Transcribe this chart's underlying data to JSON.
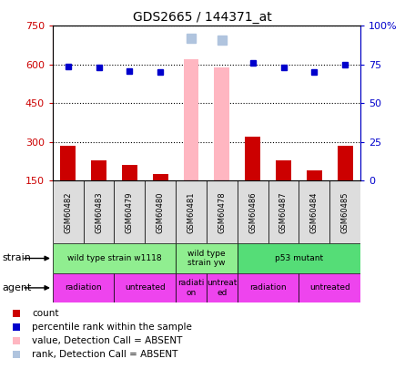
{
  "title": "GDS2665 / 144371_at",
  "samples": [
    "GSM60482",
    "GSM60483",
    "GSM60479",
    "GSM60480",
    "GSM60481",
    "GSM60478",
    "GSM60486",
    "GSM60487",
    "GSM60484",
    "GSM60485"
  ],
  "count_values": [
    285,
    230,
    210,
    175,
    null,
    null,
    320,
    230,
    190,
    285
  ],
  "count_absent": [
    null,
    null,
    null,
    null,
    620,
    590,
    null,
    null,
    null,
    null
  ],
  "percentile_values": [
    74,
    73,
    71,
    70,
    null,
    null,
    76,
    73,
    70,
    75
  ],
  "rank_absent": [
    null,
    null,
    null,
    null,
    92,
    91,
    null,
    null,
    null,
    null
  ],
  "ylim_left": [
    150,
    750
  ],
  "ylim_right": [
    0,
    100
  ],
  "yticks_left": [
    150,
    300,
    450,
    600,
    750
  ],
  "yticks_right": [
    0,
    25,
    50,
    75,
    100
  ],
  "strain_groups": [
    {
      "label": "wild type strain w1118",
      "start": 0,
      "end": 4,
      "color": "#90EE90"
    },
    {
      "label": "wild type\nstrain yw",
      "start": 4,
      "end": 6,
      "color": "#90EE90"
    },
    {
      "label": "p53 mutant",
      "start": 6,
      "end": 10,
      "color": "#55DD77"
    }
  ],
  "agent_groups": [
    {
      "label": "radiation",
      "start": 0,
      "end": 2,
      "color": "#EE44EE"
    },
    {
      "label": "untreated",
      "start": 2,
      "end": 4,
      "color": "#EE44EE"
    },
    {
      "label": "radiati-\non",
      "start": 4,
      "end": 5,
      "color": "#EE44EE"
    },
    {
      "label": "untreat-\ned",
      "start": 5,
      "end": 6,
      "color": "#EE44EE"
    },
    {
      "label": "radiation",
      "start": 6,
      "end": 8,
      "color": "#EE44EE"
    },
    {
      "label": "untreated",
      "start": 8,
      "end": 10,
      "color": "#EE44EE"
    }
  ],
  "bar_width": 0.5,
  "count_color": "#CC0000",
  "percentile_color": "#0000CC",
  "absent_bar_color": "#FFB6C1",
  "absent_rank_color": "#B0C4DE",
  "tick_label_color_left": "#CC0000",
  "tick_label_color_right": "#0000CC",
  "legend_items": [
    {
      "color": "#CC0000",
      "label": "count"
    },
    {
      "color": "#0000CC",
      "label": "percentile rank within the sample"
    },
    {
      "color": "#FFB6C1",
      "label": "value, Detection Call = ABSENT"
    },
    {
      "color": "#B0C4DE",
      "label": "rank, Detection Call = ABSENT"
    }
  ]
}
